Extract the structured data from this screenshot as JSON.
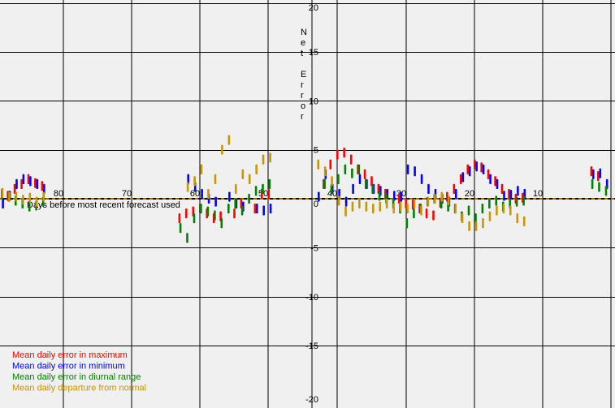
{
  "chart_data": {
    "type": "scatter",
    "title": "",
    "xlabel": "Days before most recent forecast used",
    "ylabel": "Net Error",
    "x_reversed": true,
    "xlim": [
      89.5,
      1.5
    ],
    "ylim": [
      -20,
      20
    ],
    "grid": true,
    "legend_position": "bottom-left",
    "x_tick_labels": [
      "80",
      "70",
      "60",
      "50",
      "40",
      "30",
      "20",
      "10"
    ],
    "y_tick_labels": [
      "20",
      "15",
      "10",
      "5",
      "0",
      "-5",
      "-10",
      "-15",
      "-20"
    ],
    "colors": {
      "max": "#ff0000",
      "min": "#0000ff",
      "range": "#008000",
      "normal": "#c89600",
      "background": "#f0f0f0",
      "zero_line_dash": "#c89600"
    },
    "series": [
      {
        "name": "Mean daily error in maximum",
        "key": "max",
        "points": [
          [
            88,
            0.3
          ],
          [
            87,
            1
          ],
          [
            86,
            1.5
          ],
          [
            85,
            2
          ],
          [
            84,
            1.6
          ],
          [
            83,
            1.3
          ],
          [
            63,
            -2
          ],
          [
            62,
            -1.5
          ],
          [
            61,
            -1.3
          ],
          [
            60,
            -1
          ],
          [
            59,
            -1.5
          ],
          [
            58,
            -2
          ],
          [
            57,
            -1.8
          ],
          [
            55,
            -1.5
          ],
          [
            54,
            -0.5
          ],
          [
            52,
            -1
          ],
          [
            51,
            0.5
          ],
          [
            50,
            0.5
          ],
          [
            42,
            1.5
          ],
          [
            41,
            3.5
          ],
          [
            40,
            4.5
          ],
          [
            39,
            4.7
          ],
          [
            38,
            4
          ],
          [
            37,
            3
          ],
          [
            36,
            2.5
          ],
          [
            35,
            1.8
          ],
          [
            34,
            1
          ],
          [
            33,
            0.5
          ],
          [
            31,
            0
          ],
          [
            30,
            -0.5
          ],
          [
            29,
            -0.6
          ],
          [
            28,
            -1
          ],
          [
            27,
            -1.5
          ],
          [
            26,
            -1.7
          ],
          [
            25,
            -0.4
          ],
          [
            24,
            0.2
          ],
          [
            23,
            1
          ],
          [
            22,
            2
          ],
          [
            21,
            3
          ],
          [
            20,
            3.5
          ],
          [
            19,
            3.2
          ],
          [
            18,
            2.5
          ],
          [
            17,
            1.8
          ],
          [
            16,
            1
          ],
          [
            15,
            0.5
          ],
          [
            14,
            0
          ],
          [
            13,
            0.1
          ],
          [
            3,
            2.8
          ],
          [
            2,
            2.3
          ]
        ]
      },
      {
        "name": "Mean daily error in minimum",
        "key": "min",
        "points": [
          [
            89,
            -0.5
          ],
          [
            88,
            0.3
          ],
          [
            87,
            1.5
          ],
          [
            86,
            2
          ],
          [
            85,
            1.8
          ],
          [
            84,
            1.5
          ],
          [
            83,
            1
          ],
          [
            62,
            2
          ],
          [
            61,
            1.2
          ],
          [
            60,
            0.5
          ],
          [
            59,
            0
          ],
          [
            58,
            -0.3
          ],
          [
            56,
            0.2
          ],
          [
            55,
            -0.5
          ],
          [
            54,
            -0.8
          ],
          [
            52,
            -1
          ],
          [
            51,
            -1.2
          ],
          [
            50,
            -1
          ],
          [
            43,
            0.2
          ],
          [
            42,
            2.5
          ],
          [
            41,
            1
          ],
          [
            40,
            0.5
          ],
          [
            39,
            -0.3
          ],
          [
            38,
            1
          ],
          [
            37,
            2
          ],
          [
            36,
            1.5
          ],
          [
            35,
            1
          ],
          [
            34,
            0.8
          ],
          [
            33,
            0.5
          ],
          [
            32,
            0.3
          ],
          [
            31,
            0.2
          ],
          [
            30,
            3
          ],
          [
            29,
            2.8
          ],
          [
            28,
            2
          ],
          [
            27,
            1
          ],
          [
            26,
            0.5
          ],
          [
            25,
            0
          ],
          [
            24,
            -0.3
          ],
          [
            23,
            0.5
          ],
          [
            22,
            2.2
          ],
          [
            21,
            2.8
          ],
          [
            20,
            3.3
          ],
          [
            19,
            3
          ],
          [
            18,
            2
          ],
          [
            17,
            1.5
          ],
          [
            16,
            0.3
          ],
          [
            15,
            0.4
          ],
          [
            14,
            0.8
          ],
          [
            13,
            0.5
          ],
          [
            3,
            2.5
          ],
          [
            2,
            2.6
          ],
          [
            1,
            1.5
          ]
        ]
      },
      {
        "name": "Mean daily error in diurnal range",
        "key": "range",
        "points": [
          [
            89,
            0.5
          ],
          [
            88,
            0.2
          ],
          [
            87,
            -0.2
          ],
          [
            86,
            -0.5
          ],
          [
            85,
            -0.8
          ],
          [
            84,
            -0.7
          ],
          [
            83,
            -0.3
          ],
          [
            63,
            -3
          ],
          [
            62,
            -4
          ],
          [
            61,
            -2
          ],
          [
            60,
            -1
          ],
          [
            59,
            -1.3
          ],
          [
            58,
            -1.7
          ],
          [
            57,
            -2.5
          ],
          [
            56,
            -1
          ],
          [
            55,
            -0.5
          ],
          [
            54,
            -1.2
          ],
          [
            53,
            0
          ],
          [
            52,
            0.8
          ],
          [
            51,
            1
          ],
          [
            50,
            1.5
          ],
          [
            42,
            1.5
          ],
          [
            41,
            1
          ],
          [
            40,
            2
          ],
          [
            39,
            3
          ],
          [
            38,
            2.6
          ],
          [
            37,
            3
          ],
          [
            36,
            1.5
          ],
          [
            35,
            1
          ],
          [
            34,
            0.3
          ],
          [
            33,
            0
          ],
          [
            32,
            -0.5
          ],
          [
            31,
            -1
          ],
          [
            30,
            -2.5
          ],
          [
            29,
            -1.5
          ],
          [
            28,
            -1
          ],
          [
            27,
            -0.3
          ],
          [
            26,
            0
          ],
          [
            25,
            -0.5
          ],
          [
            24,
            -0.8
          ],
          [
            23,
            -1
          ],
          [
            22,
            -1.8
          ],
          [
            21,
            -1.2
          ],
          [
            20,
            -2
          ],
          [
            19,
            -1
          ],
          [
            18,
            -0.5
          ],
          [
            17,
            -0.2
          ],
          [
            16,
            -0.8
          ],
          [
            15,
            -0.5
          ],
          [
            14,
            -0.3
          ],
          [
            13,
            -0.2
          ],
          [
            3,
            1.5
          ],
          [
            2,
            1.2
          ],
          [
            1,
            0.8
          ]
        ]
      },
      {
        "name": "Mean daily departure from normal",
        "key": "normal",
        "points": [
          [
            89,
            0.6
          ],
          [
            88,
            0.2
          ],
          [
            87,
            0.2
          ],
          [
            86,
            -0.1
          ],
          [
            85,
            0.1
          ],
          [
            84,
            -0.3
          ],
          [
            83,
            0.2
          ],
          [
            62,
            1.2
          ],
          [
            61,
            1.8
          ],
          [
            60,
            3
          ],
          [
            59,
            0.5
          ],
          [
            58,
            2
          ],
          [
            57,
            5
          ],
          [
            56,
            6
          ],
          [
            55,
            1
          ],
          [
            54,
            2.5
          ],
          [
            53,
            2
          ],
          [
            52,
            3
          ],
          [
            51,
            4
          ],
          [
            50,
            4.2
          ],
          [
            43,
            3.5
          ],
          [
            42,
            2.8
          ],
          [
            41,
            1.8
          ],
          [
            40,
            -0.2
          ],
          [
            39,
            -1.3
          ],
          [
            38,
            -0.8
          ],
          [
            37,
            -0.5
          ],
          [
            36,
            -0.8
          ],
          [
            35,
            -1
          ],
          [
            34,
            -0.8
          ],
          [
            33,
            -0.5
          ],
          [
            32,
            -1
          ],
          [
            31,
            -0.8
          ],
          [
            30,
            -1
          ],
          [
            29,
            -0.5
          ],
          [
            28,
            -1.2
          ],
          [
            27,
            -0.3
          ],
          [
            26,
            0
          ],
          [
            25,
            0.2
          ],
          [
            24,
            -0.2
          ],
          [
            23,
            -1
          ],
          [
            22,
            -2
          ],
          [
            21,
            -2.8
          ],
          [
            20,
            -2.8
          ],
          [
            19,
            -2.5
          ],
          [
            18,
            -1.8
          ],
          [
            17,
            -1.2
          ],
          [
            16,
            -1
          ],
          [
            15,
            -1.2
          ],
          [
            14,
            -2
          ],
          [
            13,
            -2.3
          ]
        ]
      }
    ]
  }
}
